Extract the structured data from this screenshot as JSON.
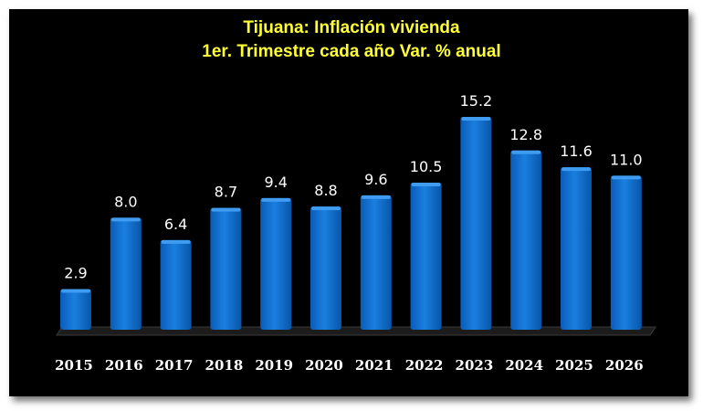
{
  "colors": {
    "background": "#000000",
    "title": "#ffff33",
    "bar": "#0a6fd0",
    "bar_top": "#3f9cf0",
    "text": "#ffffff"
  },
  "chart_data": {
    "type": "bar",
    "title": "Tijuana: Inflación vivienda",
    "subtitle": "1er. Trimestre cada año Var. % anual",
    "categories": [
      "2015",
      "2016",
      "2017",
      "2018",
      "2019",
      "2020",
      "2021",
      "2022",
      "2023",
      "2024",
      "2025",
      "2026"
    ],
    "values": [
      2.9,
      8.0,
      6.4,
      8.7,
      9.4,
      8.8,
      9.6,
      10.5,
      15.2,
      12.8,
      11.6,
      11.0
    ],
    "value_labels": [
      "2.9",
      "8.0",
      "6.4",
      "8.7",
      "9.4",
      "8.8",
      "9.6",
      "10.5",
      "15.2",
      "12.8",
      "11.6",
      "11.0"
    ],
    "xlabel": "",
    "ylabel": "",
    "ylim": [
      0,
      16
    ],
    "grid": false,
    "legend": "none"
  }
}
